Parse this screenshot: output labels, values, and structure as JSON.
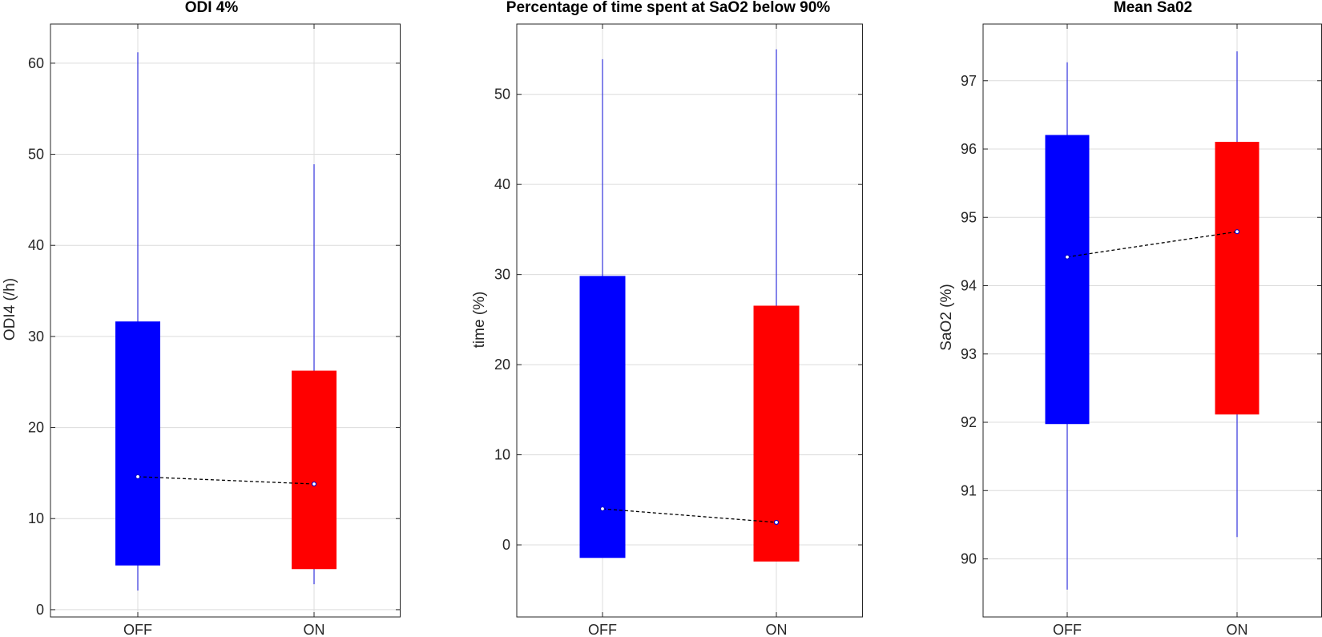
{
  "colors": {
    "off": "#0000ff",
    "on": "#ff0000",
    "whisker": "#3333dd",
    "grid": "#dcdcdc",
    "axis": "#262626"
  },
  "chart_data": [
    {
      "type": "box",
      "title": "ODI 4%",
      "ylabel": "ODI4 (/h)",
      "ylim": [
        -0.8,
        64.3
      ],
      "yticks": [
        0,
        10,
        20,
        30,
        40,
        50,
        60
      ],
      "ytick_labels": [
        "0",
        "10",
        "20",
        "30",
        "40",
        "50",
        "60"
      ],
      "categories": [
        "OFF",
        "ON"
      ],
      "grid": true,
      "series": [
        {
          "category": "OFF",
          "color": "#0000ff",
          "box_low": 4.9,
          "box_high": 31.6,
          "whisker_low": 2.1,
          "whisker_high": 61.2,
          "mean": 14.6
        },
        {
          "category": "ON",
          "color": "#ff0000",
          "box_low": 4.5,
          "box_high": 26.2,
          "whisker_low": 2.8,
          "whisker_high": 48.9,
          "mean": 13.8
        }
      ]
    },
    {
      "type": "box",
      "title": "Percentage of time spent at SaO2 below 90%",
      "ylabel": "time (%)",
      "ylim": [
        -8,
        57.8
      ],
      "yticks": [
        0,
        10,
        20,
        30,
        40,
        50
      ],
      "ytick_labels": [
        "0",
        "10",
        "20",
        "30",
        "40",
        "50"
      ],
      "categories": [
        "OFF",
        "ON"
      ],
      "grid": true,
      "series": [
        {
          "category": "OFF",
          "color": "#0000ff",
          "box_low": -1.4,
          "box_high": 29.8,
          "whisker_low": -1.4,
          "whisker_high": 53.9,
          "mean": 4.0
        },
        {
          "category": "ON",
          "color": "#ff0000",
          "box_low": -1.8,
          "box_high": 26.5,
          "whisker_low": -1.8,
          "whisker_high": 55.0,
          "mean": 2.5
        }
      ]
    },
    {
      "type": "box",
      "title": "Mean Sa02",
      "ylabel": "SaO2 (%)",
      "ylim": [
        89.15,
        97.83
      ],
      "yticks": [
        90,
        91,
        92,
        93,
        94,
        95,
        96,
        97
      ],
      "ytick_labels": [
        "90",
        "91",
        "92",
        "93",
        "94",
        "95",
        "96",
        "97"
      ],
      "categories": [
        "OFF",
        "ON"
      ],
      "grid": true,
      "series": [
        {
          "category": "OFF",
          "color": "#0000ff",
          "box_low": 91.98,
          "box_high": 96.2,
          "whisker_low": 89.55,
          "whisker_high": 97.27,
          "mean": 94.42
        },
        {
          "category": "ON",
          "color": "#ff0000",
          "box_low": 92.12,
          "box_high": 96.1,
          "whisker_low": 90.32,
          "whisker_high": 97.43,
          "mean": 94.79
        }
      ]
    }
  ]
}
